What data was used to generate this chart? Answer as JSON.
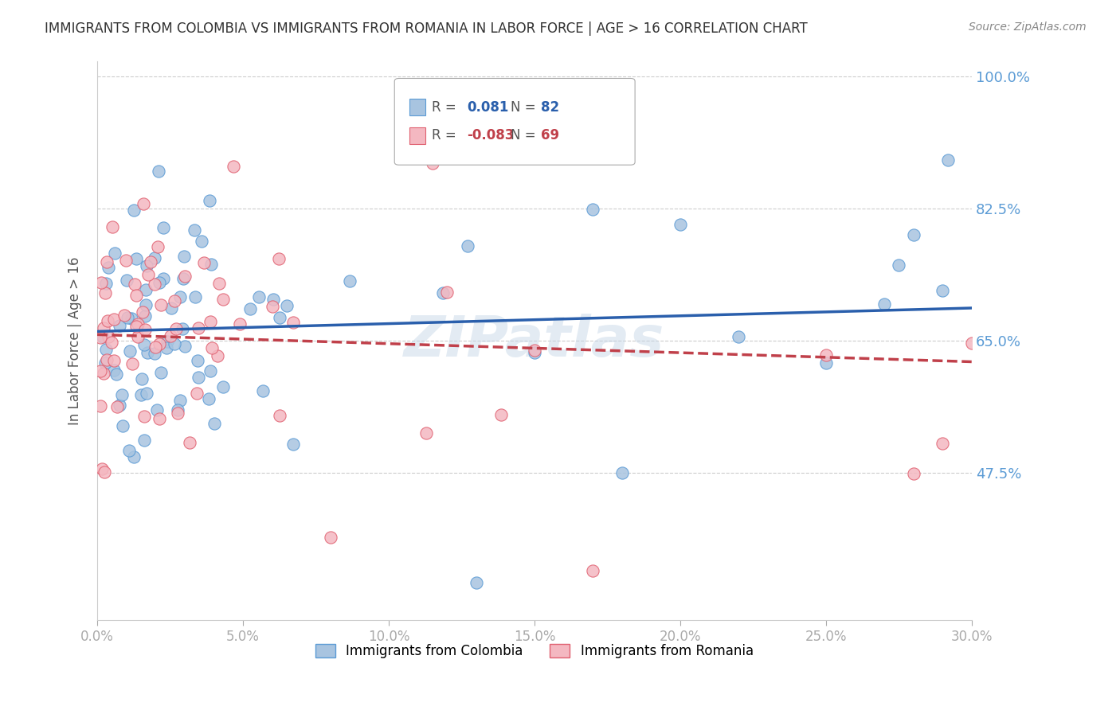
{
  "title": "IMMIGRANTS FROM COLOMBIA VS IMMIGRANTS FROM ROMANIA IN LABOR FORCE | AGE > 16 CORRELATION CHART",
  "source": "Source: ZipAtlas.com",
  "ylabel": "In Labor Force | Age > 16",
  "xlim": [
    0.0,
    0.3
  ],
  "ylim": [
    0.28,
    1.02
  ],
  "yticks": [
    0.475,
    0.65,
    0.825,
    1.0
  ],
  "ytick_labels": [
    "47.5%",
    "65.0%",
    "82.5%",
    "100.0%"
  ],
  "xticks": [
    0.0,
    0.05,
    0.1,
    0.15,
    0.2,
    0.25,
    0.3
  ],
  "xtick_labels": [
    "0.0%",
    "5.0%",
    "10.0%",
    "15.0%",
    "20.0%",
    "25.0%",
    "30.0%"
  ],
  "colombia_color": "#a8c4e0",
  "colombia_edge": "#5b9bd5",
  "romania_color": "#f4b8c1",
  "romania_edge": "#e06070",
  "trend_colombia_color": "#2a5fac",
  "trend_romania_color": "#c0404a",
  "colombia_R": 0.081,
  "colombia_N": 82,
  "romania_R": -0.083,
  "romania_N": 69,
  "watermark": "ZIPatlas",
  "background_color": "#ffffff",
  "grid_color": "#cccccc",
  "axis_color": "#5b9bd5",
  "title_color": "#333333"
}
